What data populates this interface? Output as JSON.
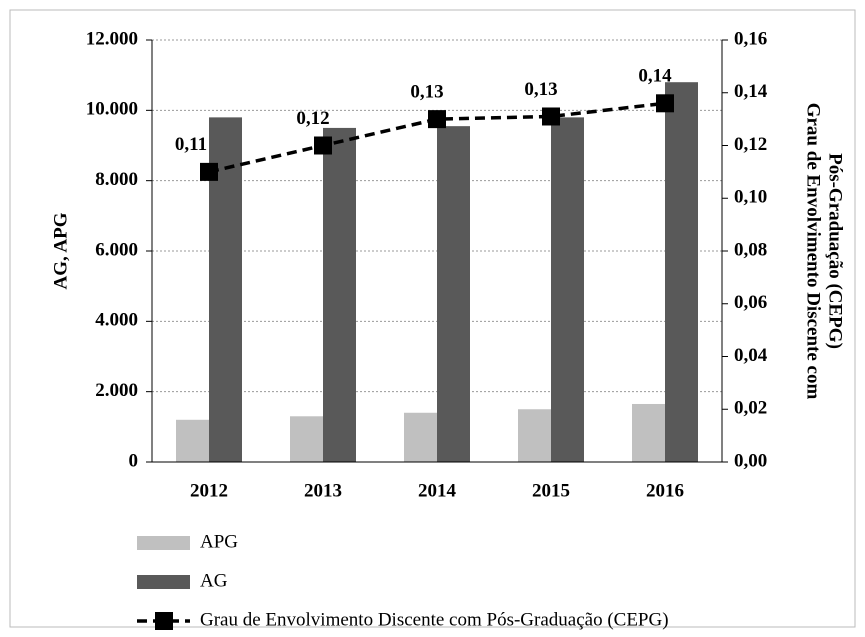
{
  "chart_data": {
    "type": "bar_line",
    "ylabel": "AG,  APG",
    "y2label": [
      "Grau de Envolvimento Discente com",
      "Pós-Graduação (CEPG)"
    ],
    "categories": [
      "2012",
      "2013",
      "2014",
      "2015",
      "2016"
    ],
    "series": [
      {
        "name": "APG",
        "type": "bar",
        "color": "#c0c0c0",
        "values": [
          1200,
          1300,
          1400,
          1500,
          1650
        ]
      },
      {
        "name": "AG",
        "type": "bar",
        "color": "#595959",
        "values": [
          9800,
          9500,
          9550,
          9800,
          10800
        ]
      },
      {
        "name": "Grau de Envolvimento Discente com Pós-Graduação (CEPG)",
        "type": "line",
        "axis": "y2",
        "color": "#000000",
        "values": [
          0.11,
          0.12,
          0.13,
          0.131,
          0.136
        ],
        "value_labels": [
          "0,11",
          "0,12",
          "0,13",
          "0,13",
          "0,14"
        ]
      }
    ],
    "ylim": [
      0,
      12000
    ],
    "yticks": [
      0,
      {
        "value": 2000,
        "label": "2.000"
      },
      {
        "value": 4000,
        "label": "4.000"
      },
      {
        "value": 6000,
        "label": "6.000"
      },
      {
        "value": 8000,
        "label": "8.000"
      },
      {
        "value": 10000,
        "label": "10.000"
      },
      {
        "value": 12000,
        "label": "12.000"
      }
    ],
    "y2lim": [
      0,
      0.16
    ],
    "y2ticks": [
      {
        "value": 0,
        "label": "0,00"
      },
      {
        "value": 0.02,
        "label": "0,02"
      },
      {
        "value": 0.04,
        "label": "0,04"
      },
      {
        "value": 0.06,
        "label": "0,06"
      },
      {
        "value": 0.08,
        "label": "0,08"
      },
      {
        "value": 0.1,
        "label": "0,10"
      },
      {
        "value": 0.12,
        "label": "0,12"
      },
      {
        "value": 0.14,
        "label": "0,14"
      },
      {
        "value": 0.16,
        "label": "0,16"
      }
    ],
    "grid": true
  }
}
